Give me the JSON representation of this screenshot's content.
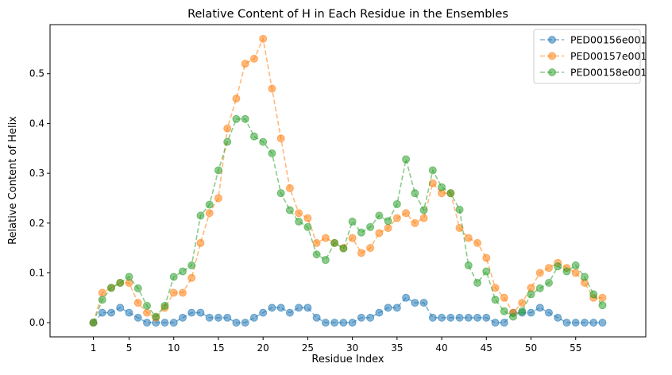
{
  "chart_data": {
    "type": "line",
    "title": "Relative Content of H in Each Residue in the Ensembles",
    "xlabel": "Residue Index",
    "ylabel": "Relative Content of Helix",
    "xlim": [
      -3.85,
      62.85
    ],
    "ylim": [
      -0.0285,
      0.5985
    ],
    "xticks": [
      1,
      5,
      10,
      15,
      20,
      25,
      30,
      35,
      40,
      45,
      50,
      55
    ],
    "yticks": [
      0.0,
      0.1,
      0.2,
      0.3,
      0.4,
      0.5
    ],
    "ytick_labels": [
      "0.0",
      "0.1",
      "0.2",
      "0.3",
      "0.4",
      "0.5"
    ],
    "legend_position": "top-right",
    "grid": false,
    "x": [
      1,
      2,
      3,
      4,
      5,
      6,
      7,
      8,
      9,
      10,
      11,
      12,
      13,
      14,
      15,
      16,
      17,
      18,
      19,
      20,
      21,
      22,
      23,
      24,
      25,
      26,
      27,
      28,
      29,
      30,
      31,
      32,
      33,
      34,
      35,
      36,
      37,
      38,
      39,
      40,
      41,
      42,
      43,
      44,
      45,
      46,
      47,
      48,
      49,
      50,
      51,
      52,
      53,
      54,
      55,
      56,
      57,
      58
    ],
    "series": [
      {
        "name": "PED00156e001",
        "color": "#1f77b4",
        "values": [
          0,
          0.02,
          0.02,
          0.03,
          0.02,
          0.01,
          0,
          0,
          0,
          0,
          0.01,
          0.02,
          0.02,
          0.01,
          0.01,
          0.01,
          0,
          0,
          0.01,
          0.02,
          0.03,
          0.03,
          0.02,
          0.03,
          0.03,
          0.01,
          0,
          0,
          0,
          0,
          0.01,
          0.01,
          0.02,
          0.03,
          0.03,
          0.05,
          0.04,
          0.04,
          0.01,
          0.01,
          0.01,
          0.01,
          0.01,
          0.01,
          0.01,
          0,
          0,
          0.02,
          0.02,
          0.02,
          0.03,
          0.02,
          0.01,
          0,
          0,
          0,
          0,
          0
        ]
      },
      {
        "name": "PED00157e001",
        "color": "#ff7f0e",
        "values": [
          0,
          0.06,
          0.07,
          0.08,
          0.08,
          0.04,
          0.02,
          0.01,
          0.03,
          0.06,
          0.06,
          0.09,
          0.16,
          0.22,
          0.25,
          0.39,
          0.45,
          0.52,
          0.53,
          0.57,
          0.47,
          0.37,
          0.27,
          0.22,
          0.21,
          0.16,
          0.17,
          0.16,
          0.15,
          0.17,
          0.14,
          0.15,
          0.18,
          0.19,
          0.21,
          0.22,
          0.2,
          0.21,
          0.28,
          0.26,
          0.26,
          0.19,
          0.17,
          0.16,
          0.13,
          0.07,
          0.05,
          0.02,
          0.04,
          0.07,
          0.1,
          0.11,
          0.12,
          0.11,
          0.1,
          0.08,
          0.05,
          0.05
        ]
      },
      {
        "name": "PED00158e001",
        "color": "#2ca02c",
        "values": [
          0,
          0.046,
          0.07,
          0.08,
          0.092,
          0.069,
          0.034,
          0.012,
          0.034,
          0.092,
          0.103,
          0.115,
          0.215,
          0.237,
          0.306,
          0.363,
          0.409,
          0.409,
          0.374,
          0.363,
          0.34,
          0.26,
          0.226,
          0.203,
          0.192,
          0.137,
          0.126,
          0.16,
          0.149,
          0.203,
          0.181,
          0.192,
          0.215,
          0.204,
          0.238,
          0.328,
          0.26,
          0.226,
          0.306,
          0.272,
          0.26,
          0.227,
          0.115,
          0.08,
          0.103,
          0.046,
          0.023,
          0.012,
          0.023,
          0.057,
          0.069,
          0.08,
          0.113,
          0.103,
          0.115,
          0.092,
          0.057,
          0.035
        ]
      }
    ]
  }
}
